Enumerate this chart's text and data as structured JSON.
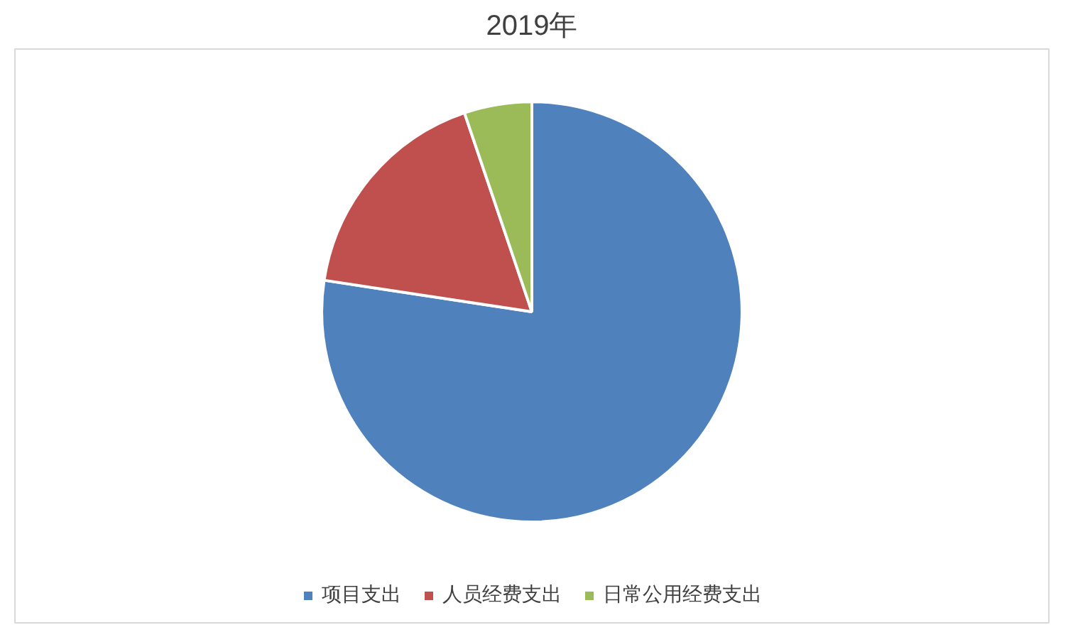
{
  "chart_data": {
    "type": "pie",
    "title": "2019年",
    "categories": [
      "项目支出",
      "人员经费支出",
      "日常公用经费支出"
    ],
    "values": [
      77.4,
      17.4,
      5.2
    ],
    "colors": [
      "#4f81bd",
      "#c0504d",
      "#9bbb59"
    ],
    "legend": "bottom"
  }
}
